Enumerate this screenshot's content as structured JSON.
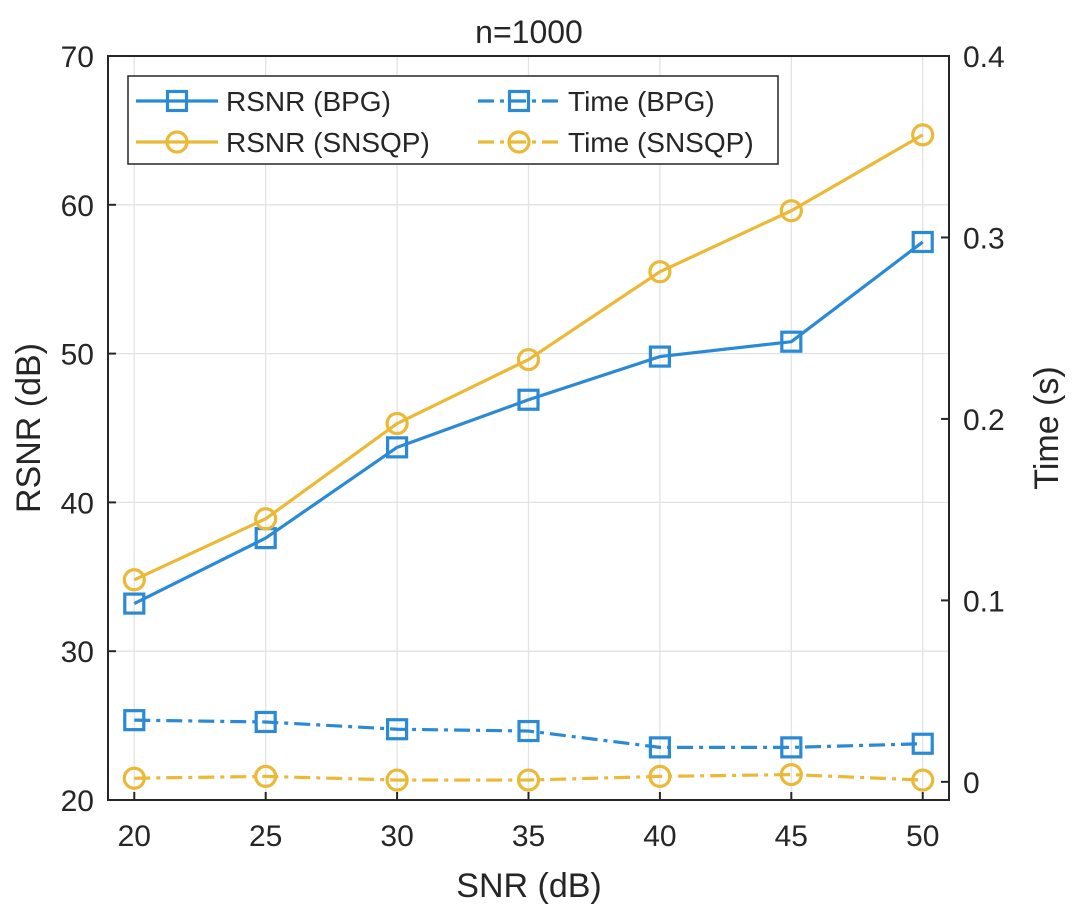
{
  "chart_data": {
    "type": "line",
    "title": "n=1000",
    "xlabel": "SNR (dB)",
    "ylabel": "RSNR (dB)",
    "y2label": "Time (s)",
    "x": [
      20,
      25,
      30,
      35,
      40,
      45,
      50
    ],
    "xlim": [
      19,
      51
    ],
    "ylim": [
      20,
      70
    ],
    "y2lim": [
      -0.01,
      0.4
    ],
    "xticks": [
      "20",
      "25",
      "30",
      "35",
      "40",
      "45",
      "50"
    ],
    "yticks": [
      "20",
      "30",
      "40",
      "50",
      "60",
      "70"
    ],
    "y2ticks": [
      "0",
      "0.1",
      "0.2",
      "0.3",
      "0.4"
    ],
    "grid": true,
    "legend_position": "top-left",
    "series": [
      {
        "name": "RSNR (BPG)",
        "axis": "left",
        "color": "#2a8ad6",
        "marker": "square",
        "dash": "solid",
        "values": [
          33.2,
          37.6,
          43.7,
          46.9,
          49.8,
          50.8,
          57.5
        ]
      },
      {
        "name": "RSNR (SNSQP)",
        "axis": "left",
        "color": "#ebb935",
        "marker": "circle",
        "dash": "solid",
        "values": [
          34.8,
          38.9,
          45.3,
          49.6,
          55.5,
          59.6,
          64.7
        ]
      },
      {
        "name": "Time (BPG)",
        "axis": "right",
        "color": "#2a8ad6",
        "marker": "square",
        "dash": "dashdot",
        "values": [
          0.034,
          0.033,
          0.029,
          0.028,
          0.019,
          0.019,
          0.021
        ]
      },
      {
        "name": "Time (SNSQP)",
        "axis": "right",
        "color": "#ebb935",
        "marker": "circle",
        "dash": "dashdot",
        "values": [
          0.002,
          0.003,
          0.001,
          0.001,
          0.003,
          0.004,
          0.001
        ]
      }
    ]
  }
}
